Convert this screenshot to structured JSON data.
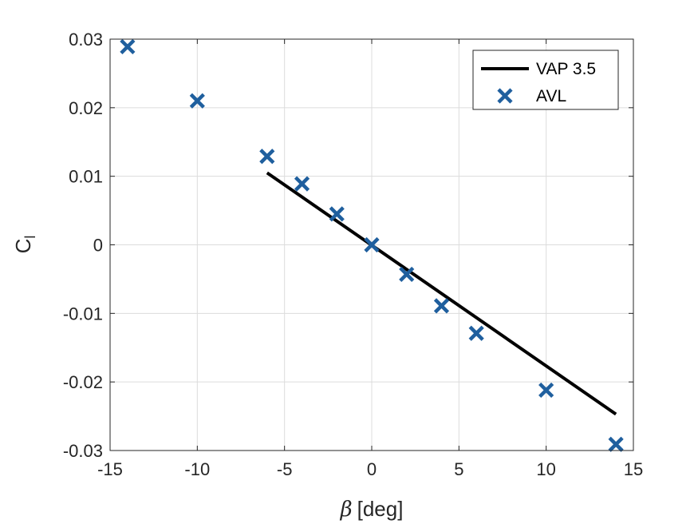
{
  "chart_data": {
    "type": "line",
    "xlabel": "β [deg]",
    "xlabel_symbol": "β",
    "xlabel_unit": "[deg]",
    "ylabel": "Cl",
    "ylabel_main": "C",
    "ylabel_sub": "l",
    "xlim": [
      -15,
      15
    ],
    "ylim": [
      -0.03,
      0.03
    ],
    "xticks": [
      -15,
      -10,
      -5,
      0,
      5,
      10,
      15
    ],
    "xtick_labels": [
      "-15",
      "-10",
      "-5",
      "0",
      "5",
      "10",
      "15"
    ],
    "yticks": [
      -0.03,
      -0.02,
      -0.01,
      0,
      0.01,
      0.02,
      0.03
    ],
    "ytick_labels": [
      "-0.03",
      "-0.02",
      "-0.01",
      "0",
      "0.01",
      "0.02",
      "0.03"
    ],
    "grid": true,
    "legend_position": "top-right",
    "series": [
      {
        "name": "VAP 3.5",
        "kind": "line",
        "color": "#000000",
        "x": [
          -6,
          14
        ],
        "y": [
          0.0105,
          -0.0247
        ]
      },
      {
        "name": "AVL",
        "kind": "scatter",
        "marker": "x",
        "color": "#1f5f9e",
        "x": [
          -14,
          -10,
          -6,
          -4,
          -2,
          0,
          2,
          4,
          6,
          10,
          14
        ],
        "y": [
          0.0289,
          0.021,
          0.0129,
          0.0089,
          0.0045,
          0,
          -0.0043,
          -0.0089,
          -0.0129,
          -0.0212,
          -0.0291
        ]
      }
    ]
  }
}
